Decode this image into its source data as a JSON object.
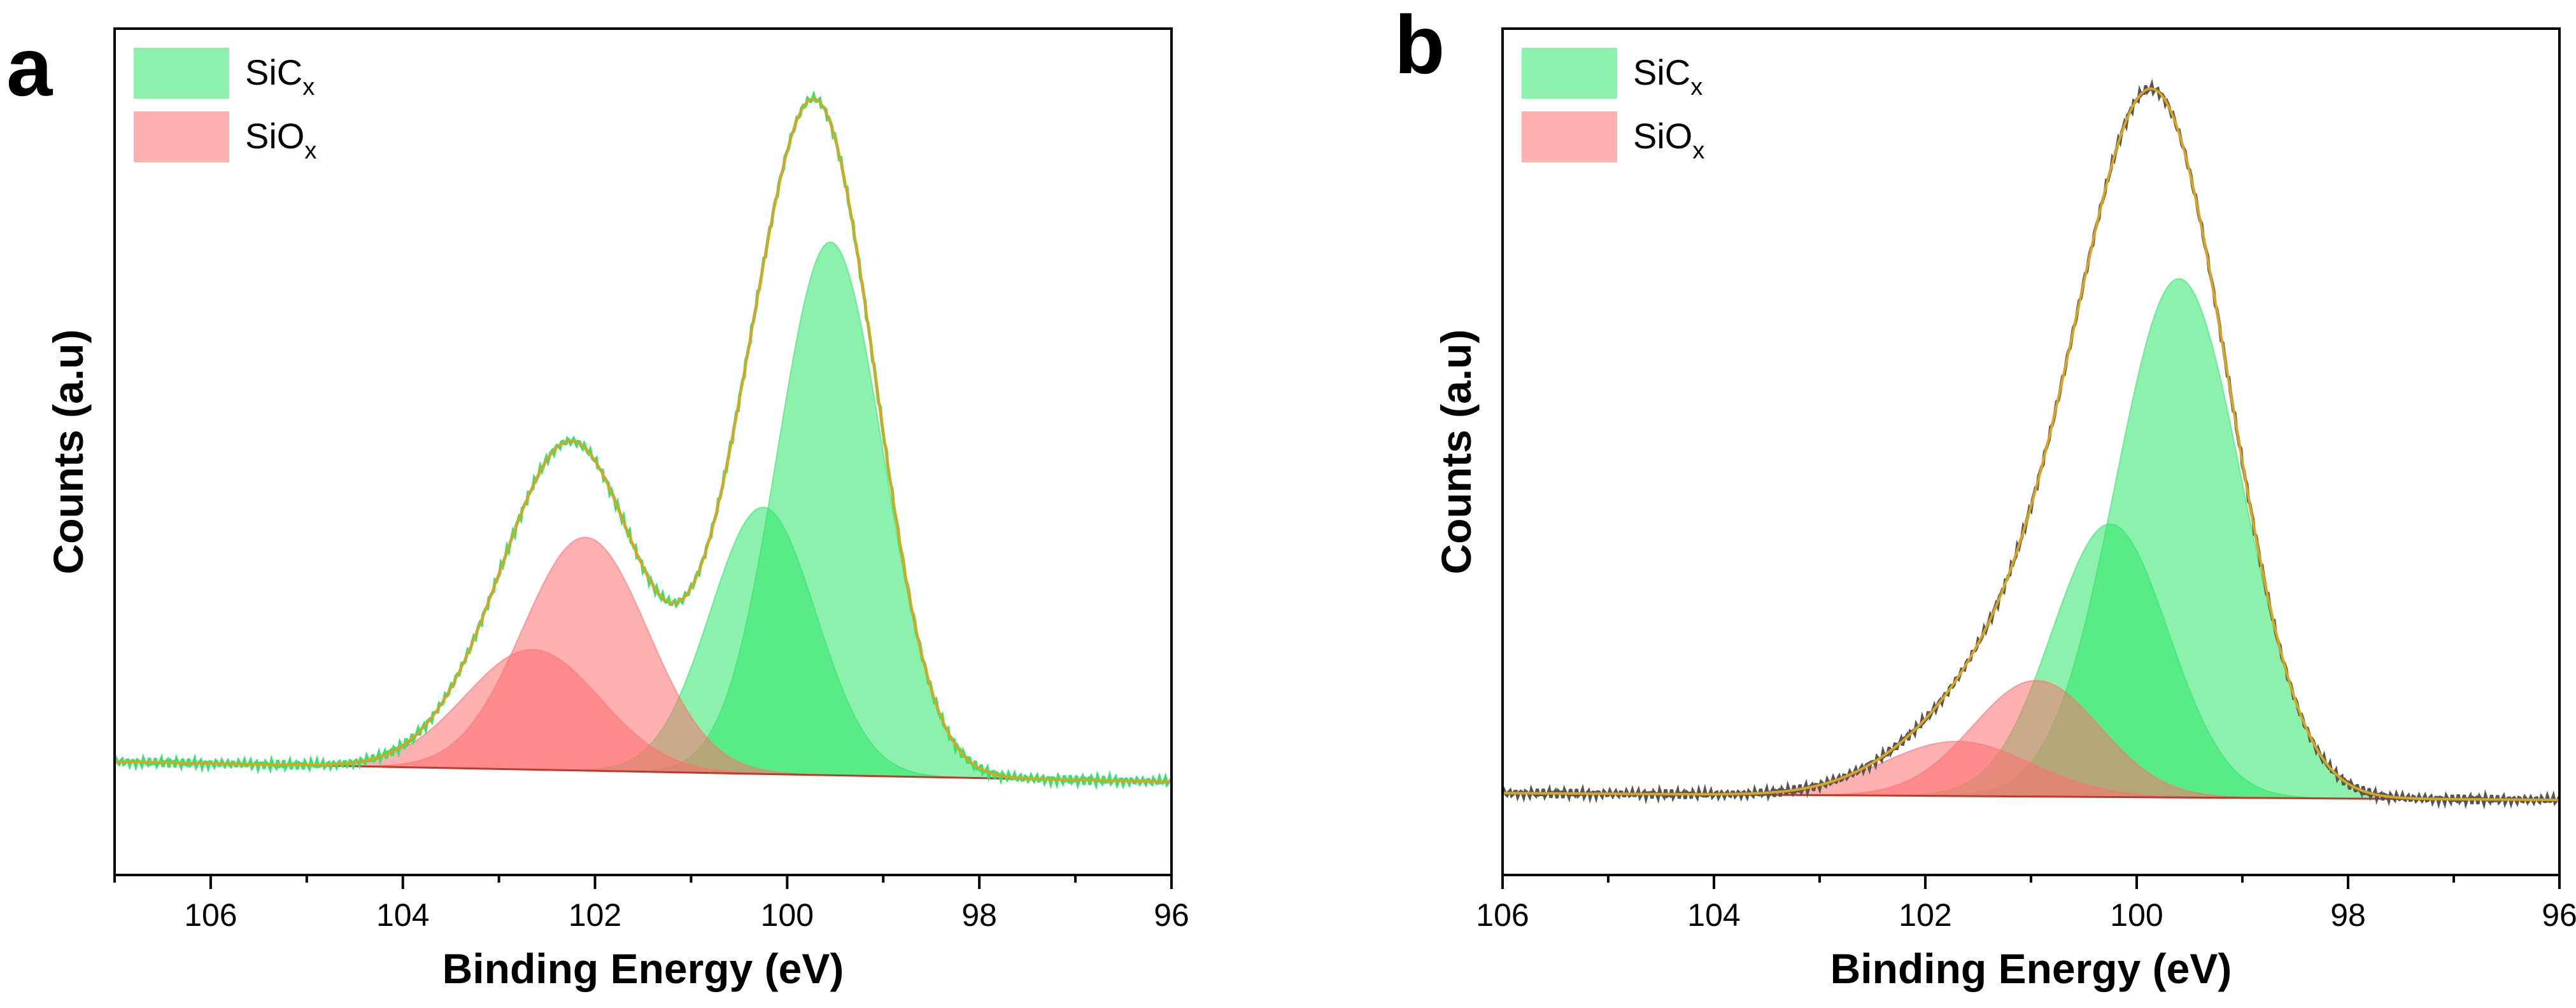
{
  "colors": {
    "sicx": "#2ee66a",
    "siox": "#ff7070",
    "envelope": "#d9a520",
    "frame": "#000000"
  },
  "chart_data": [
    {
      "type": "area",
      "panel_label": "a",
      "xlabel": "Binding Energy (eV)",
      "ylabel": "Counts (a.u)",
      "xlim": [
        107,
        96
      ],
      "x_reversed": true,
      "xticks": [
        106,
        104,
        102,
        100,
        98,
        96
      ],
      "ylim": [
        -0.17,
        1.1
      ],
      "legend": {
        "placement": "top-left",
        "entries": [
          {
            "base": "SiC",
            "sub": "x",
            "color_key": "sicx"
          },
          {
            "base": "SiO",
            "sub": "x",
            "color_key": "siox"
          }
        ]
      },
      "baseline": {
        "x": [
          107,
          96
        ],
        "y": [
          0.0,
          -0.03
        ]
      },
      "components": [
        {
          "group": "SiC_x",
          "center": 99.55,
          "height": 0.8,
          "sigma": 0.55
        },
        {
          "group": "SiC_x",
          "center": 100.25,
          "height": 0.4,
          "sigma": 0.55
        },
        {
          "group": "SiO_x",
          "center": 102.1,
          "height": 0.35,
          "sigma": 0.65
        },
        {
          "group": "SiO_x",
          "center": 102.65,
          "height": 0.18,
          "sigma": 0.7
        }
      ],
      "envelope_peaks": [
        {
          "x": 99.8,
          "y": 1.0
        },
        {
          "x": 102.3,
          "y": 0.53
        },
        {
          "x": 101.2,
          "y": 0.32
        }
      ]
    },
    {
      "type": "area",
      "panel_label": "b",
      "xlabel": "Binding Energy (eV)",
      "ylabel": "Counts (a.u)",
      "xlim": [
        106,
        96
      ],
      "x_reversed": true,
      "xticks": [
        106,
        104,
        102,
        100,
        98,
        96
      ],
      "ylim": [
        -0.12,
        1.12
      ],
      "legend": {
        "placement": "top-left",
        "entries": [
          {
            "base": "SiC",
            "sub": "x",
            "color_key": "sicx"
          },
          {
            "base": "SiO",
            "sub": "x",
            "color_key": "siox"
          }
        ]
      },
      "baseline": {
        "x": [
          106,
          96
        ],
        "y": [
          0.0,
          -0.01
        ]
      },
      "components": [
        {
          "group": "SiC_x",
          "center": 99.6,
          "height": 0.76,
          "sigma": 0.6
        },
        {
          "group": "SiC_x",
          "center": 100.25,
          "height": 0.4,
          "sigma": 0.55
        },
        {
          "group": "SiO_x",
          "center": 100.95,
          "height": 0.17,
          "sigma": 0.6
        },
        {
          "group": "SiO_x",
          "center": 101.7,
          "height": 0.08,
          "sigma": 0.7
        }
      ],
      "envelope_peaks": [
        {
          "x": 99.85,
          "y": 1.0
        }
      ]
    }
  ]
}
